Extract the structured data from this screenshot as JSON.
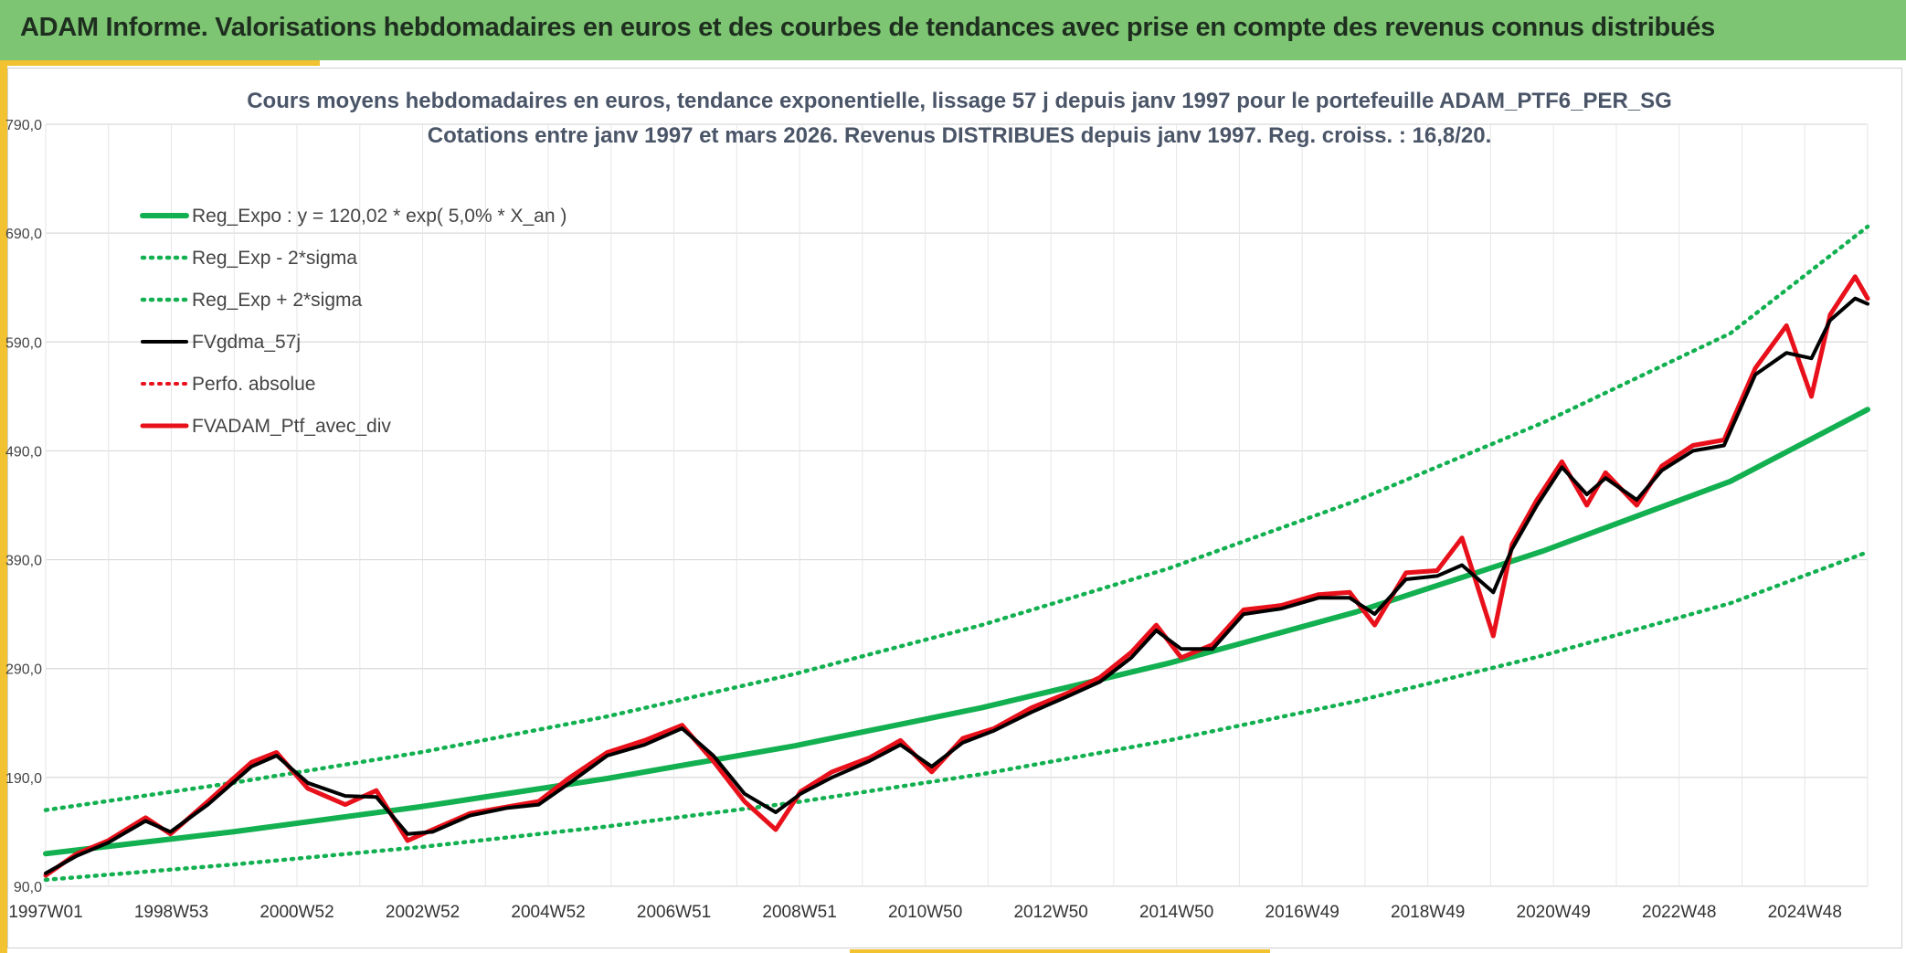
{
  "header": {
    "title": "ADAM Informe. Valorisations hebdomadaires en euros et des courbes de tendances avec prise en compte des revenus connus distribués"
  },
  "colors": {
    "banner": "#7dc573",
    "accent": "#f2c230",
    "trend": "#12b050",
    "smooth": "#000000",
    "perf": "#e8101a",
    "portfolio": "#e8101a"
  },
  "chart_data": {
    "type": "line",
    "title": "Cours moyens hebdomadaires en euros, tendance exponentielle, lissage 57 j depuis janv 1997 pour le portefeuille ADAM_PTF6_PER_SG",
    "subtitle": "Cotations entre janv 1997 et mars 2026. Revenus DISTRIBUES depuis janv 1997. Reg. croiss. : 16,8/20.",
    "ylim": [
      90,
      790
    ],
    "y_ticks": [
      "90,0",
      "190,0",
      "290,0",
      "390,0",
      "490,0",
      "590,0",
      "690,0",
      "790,0"
    ],
    "x_ticks": [
      "1997W01",
      "1998W53",
      "2000W52",
      "2002W52",
      "2004W52",
      "2006W51",
      "2008W51",
      "2010W50",
      "2012W50",
      "2014W50",
      "2016W49",
      "2018W49",
      "2020W49",
      "2022W48",
      "2024W48"
    ],
    "x_range": [
      1997.0,
      2026.2
    ],
    "grid": true,
    "legend_position": "top-left",
    "series": [
      {
        "name": "Reg_Expo : y = 120,02 * exp( 5,0% *  X_an )",
        "style": "solid-green",
        "x": [
          1997,
          2000,
          2003,
          2006,
          2009,
          2012,
          2015,
          2018,
          2021,
          2024,
          2026.2
        ],
        "y": [
          120,
          140,
          163,
          189,
          219,
          254,
          295,
          342,
          398,
          462,
          528
        ]
      },
      {
        "name": "Reg_Exp - 2*sigma",
        "style": "dotted-green",
        "x": [
          1997,
          2000,
          2003,
          2006,
          2009,
          2012,
          2015,
          2018,
          2021,
          2024,
          2026.2
        ],
        "y": [
          96,
          110,
          126,
          145,
          167,
          193,
          224,
          260,
          302,
          350,
          397
        ]
      },
      {
        "name": "Reg_Exp + 2*sigma",
        "style": "dotted-green",
        "x": [
          1997,
          2000,
          2003,
          2006,
          2009,
          2012,
          2015,
          2018,
          2021,
          2024,
          2026.2
        ],
        "y": [
          160,
          185,
          213,
          246,
          285,
          330,
          382,
          444,
          516,
          598,
          696
        ]
      },
      {
        "name": "FVgdma_57j",
        "style": "solid-black",
        "x": [
          1997.0,
          1997.5,
          1998.0,
          1998.6,
          1999.0,
          1999.6,
          2000.3,
          2000.7,
          2001.2,
          2001.8,
          2002.3,
          2002.8,
          2003.2,
          2003.8,
          2004.4,
          2004.9,
          2005.4,
          2006.0,
          2006.6,
          2007.2,
          2007.7,
          2008.2,
          2008.7,
          2009.1,
          2009.6,
          2010.2,
          2010.7,
          2011.2,
          2011.7,
          2012.2,
          2012.8,
          2013.4,
          2013.9,
          2014.4,
          2014.8,
          2015.2,
          2015.7,
          2016.2,
          2016.8,
          2017.4,
          2017.9,
          2018.3,
          2018.8,
          2019.3,
          2019.7,
          2020.2,
          2020.5,
          2020.9,
          2021.3,
          2021.7,
          2022.0,
          2022.5,
          2022.9,
          2023.4,
          2023.9,
          2024.4,
          2024.9,
          2025.3,
          2025.6,
          2026.0,
          2026.2
        ],
        "y": [
          102,
          118,
          130,
          150,
          140,
          165,
          200,
          210,
          185,
          173,
          172,
          138,
          140,
          155,
          162,
          165,
          185,
          210,
          220,
          235,
          210,
          175,
          158,
          175,
          190,
          205,
          220,
          200,
          222,
          233,
          250,
          265,
          278,
          300,
          325,
          308,
          308,
          340,
          345,
          355,
          355,
          340,
          372,
          375,
          385,
          360,
          400,
          440,
          475,
          450,
          465,
          445,
          472,
          490,
          495,
          560,
          580,
          575,
          610,
          630,
          625
        ]
      },
      {
        "name": "Perfo. absolue",
        "style": "dotted-red",
        "x": [],
        "y": []
      },
      {
        "name": "FVADAM_Ptf_avec_div",
        "style": "solid-red",
        "x": [
          1997.0,
          1997.5,
          1998.0,
          1998.6,
          1999.0,
          1999.6,
          2000.3,
          2000.7,
          2001.2,
          2001.8,
          2002.3,
          2002.8,
          2003.2,
          2003.8,
          2004.4,
          2004.9,
          2005.4,
          2006.0,
          2006.6,
          2007.2,
          2007.7,
          2008.2,
          2008.7,
          2009.1,
          2009.6,
          2010.2,
          2010.7,
          2011.2,
          2011.7,
          2012.2,
          2012.8,
          2013.4,
          2013.9,
          2014.4,
          2014.8,
          2015.2,
          2015.7,
          2016.2,
          2016.8,
          2017.4,
          2017.9,
          2018.3,
          2018.8,
          2019.3,
          2019.7,
          2020.2,
          2020.5,
          2020.9,
          2021.3,
          2021.7,
          2022.0,
          2022.5,
          2022.9,
          2023.4,
          2023.9,
          2024.4,
          2024.9,
          2025.3,
          2025.6,
          2026.0,
          2026.2
        ],
        "y": [
          100,
          120,
          132,
          153,
          138,
          168,
          204,
          213,
          180,
          165,
          178,
          132,
          142,
          157,
          163,
          168,
          190,
          213,
          224,
          238,
          205,
          168,
          142,
          177,
          195,
          208,
          224,
          195,
          226,
          235,
          254,
          268,
          282,
          305,
          330,
          300,
          312,
          344,
          348,
          358,
          360,
          330,
          378,
          380,
          410,
          320,
          404,
          445,
          480,
          440,
          470,
          440,
          476,
          495,
          500,
          566,
          605,
          540,
          615,
          650,
          630
        ]
      }
    ]
  }
}
